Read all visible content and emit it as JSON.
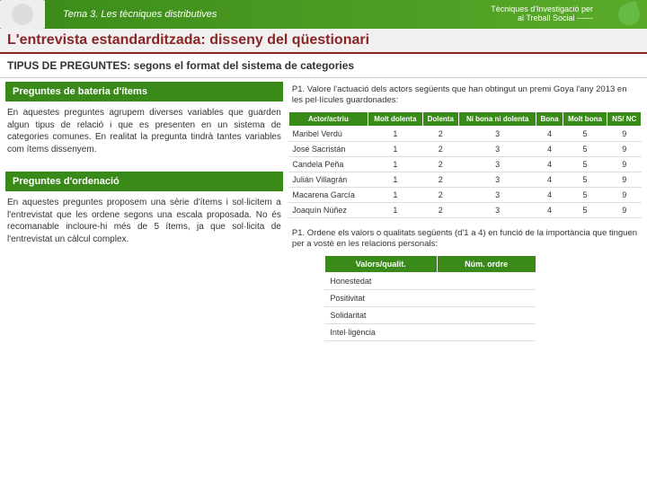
{
  "header": {
    "left": "Tema 3. Les tècniques distributives",
    "right_line1": "Tècniques d'Investigació per",
    "right_line2": "al Treball Social ------"
  },
  "title": "L'entrevista estandarditzada: disseny del qüestionari",
  "subtitle": "TIPUS DE PREGUNTES: segons el format del sistema de categories",
  "section1": {
    "heading": "Preguntes de bateria d'ítems",
    "body": "En aquestes preguntes agrupem diverses variables que guarden algun tipus de relació i que es presenten en un sistema de categories comunes. En realitat la pregunta tindrà tantes variables com ítems dissenyem.",
    "prompt": "P1. Valore l'actuació dels actors següents que han obtingut un premi Goya l'any 2013 en les pel·lícules guardonades:",
    "table": {
      "columns": [
        "Actor/actriu",
        "Molt dolenta",
        "Dolenta",
        "Ni bona ni dolenta",
        "Bona",
        "Molt bona",
        "NS/ NC"
      ],
      "rows": [
        [
          "Maribel Verdú",
          "1",
          "2",
          "3",
          "4",
          "5",
          "9"
        ],
        [
          "José Sacristán",
          "1",
          "2",
          "3",
          "4",
          "5",
          "9"
        ],
        [
          "Candela Peña",
          "1",
          "2",
          "3",
          "4",
          "5",
          "9"
        ],
        [
          "Julián Villagrán",
          "1",
          "2",
          "3",
          "4",
          "5",
          "9"
        ],
        [
          "Macarena García",
          "1",
          "2",
          "3",
          "4",
          "5",
          "9"
        ],
        [
          "Joaquín Núñez",
          "1",
          "2",
          "3",
          "4",
          "5",
          "9"
        ]
      ]
    }
  },
  "section2": {
    "heading": "Preguntes d'ordenació",
    "body": "En aquestes preguntes proposem una sèrie d'ítems i sol·licitem a l'entrevistat que les ordene segons una escala proposada. No és recomanable incloure-hi més de 5 ítems, ja que sol·licita de l'entrevistat un càlcul complex.",
    "prompt": "P1. Ordene els valors o qualitats següents (d'1 a 4) en funció de la importància que tinguen per a vostè en les relacions personals:",
    "table": {
      "columns": [
        "Valors/qualit.",
        "Núm. ordre"
      ],
      "rows": [
        [
          "Honestedat",
          ""
        ],
        [
          "Positivitat",
          ""
        ],
        [
          "Solidaritat",
          ""
        ],
        [
          "Intel·ligència",
          ""
        ]
      ]
    }
  },
  "styling": {
    "brand_green": "#3a8a1a",
    "title_red": "#8b2525",
    "background": "#ffffff",
    "grid_border": "#dddddd",
    "header_th_bg": "#3a8a1a",
    "fonts": {
      "base": 10,
      "title": 16,
      "subtitle": 12,
      "section": 11,
      "table": 9
    }
  }
}
